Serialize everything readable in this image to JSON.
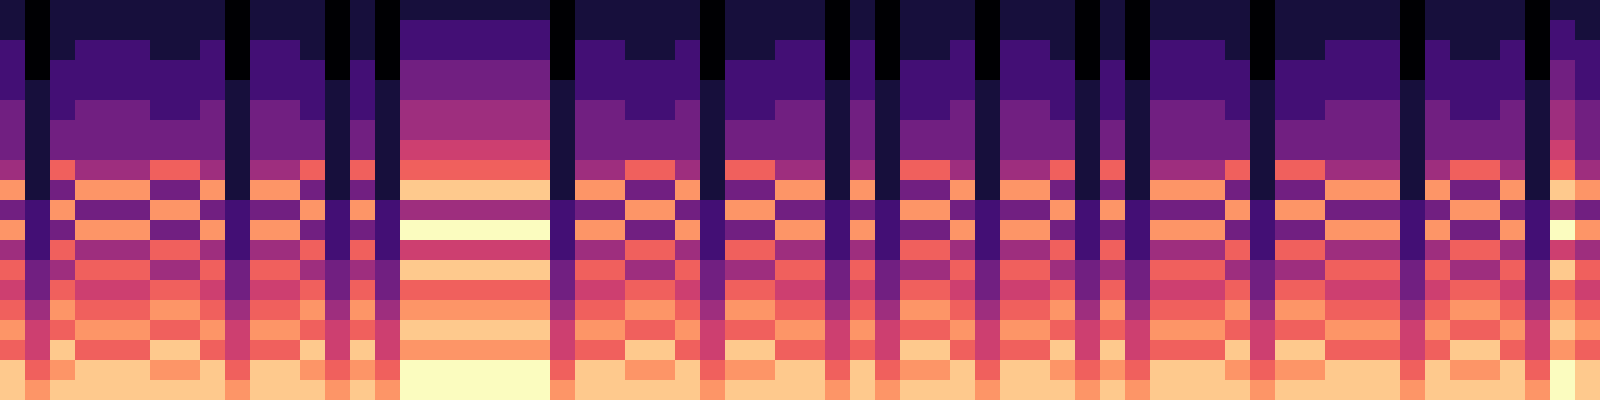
{
  "chart_data": {
    "type": "heatmap",
    "color": "magma",
    "tick_labels": false,
    "cells": [
      [
        1,
        0,
        1,
        1,
        1,
        1,
        1,
        1,
        1,
        0,
        1,
        1,
        1,
        0,
        1,
        0,
        1,
        1,
        1,
        1,
        1,
        1,
        0,
        1,
        1,
        1,
        1,
        1,
        0,
        1,
        1,
        1,
        1,
        0,
        1,
        0,
        1,
        1,
        1,
        0,
        1,
        1,
        1,
        0,
        1,
        0,
        1,
        1,
        1,
        1,
        0,
        1,
        1,
        1,
        1,
        1,
        0,
        1,
        1,
        1,
        1,
        0,
        1,
        1
      ],
      [
        1,
        0,
        1,
        1,
        1,
        1,
        1,
        1,
        1,
        0,
        1,
        1,
        1,
        0,
        1,
        0,
        2,
        2,
        2,
        2,
        2,
        2,
        0,
        1,
        1,
        1,
        1,
        1,
        0,
        1,
        1,
        1,
        1,
        0,
        1,
        0,
        1,
        1,
        1,
        0,
        1,
        1,
        1,
        0,
        1,
        0,
        1,
        1,
        1,
        1,
        0,
        1,
        1,
        1,
        1,
        1,
        0,
        1,
        1,
        1,
        1,
        0,
        2,
        1
      ],
      [
        2,
        0,
        1,
        2,
        2,
        2,
        1,
        1,
        2,
        0,
        2,
        2,
        1,
        0,
        1,
        0,
        2,
        2,
        2,
        2,
        2,
        2,
        0,
        2,
        2,
        1,
        1,
        2,
        0,
        1,
        1,
        2,
        2,
        0,
        2,
        0,
        1,
        1,
        2,
        0,
        2,
        2,
        1,
        0,
        1,
        0,
        2,
        2,
        2,
        1,
        0,
        1,
        1,
        2,
        2,
        2,
        0,
        2,
        1,
        1,
        2,
        0,
        2,
        2
      ],
      [
        2,
        0,
        2,
        2,
        2,
        2,
        2,
        2,
        2,
        0,
        2,
        2,
        2,
        0,
        2,
        0,
        3,
        3,
        3,
        3,
        3,
        3,
        0,
        2,
        2,
        2,
        2,
        2,
        0,
        2,
        2,
        2,
        2,
        0,
        2,
        0,
        2,
        2,
        2,
        0,
        2,
        2,
        2,
        0,
        2,
        0,
        2,
        2,
        2,
        2,
        0,
        2,
        2,
        2,
        2,
        2,
        0,
        2,
        2,
        2,
        2,
        0,
        3,
        2
      ],
      [
        2,
        1,
        2,
        2,
        2,
        2,
        2,
        2,
        2,
        1,
        2,
        2,
        2,
        1,
        2,
        1,
        3,
        3,
        3,
        3,
        3,
        3,
        1,
        2,
        2,
        2,
        2,
        2,
        1,
        2,
        2,
        2,
        2,
        1,
        2,
        1,
        2,
        2,
        2,
        1,
        2,
        2,
        2,
        1,
        2,
        1,
        2,
        2,
        2,
        2,
        1,
        2,
        2,
        2,
        2,
        2,
        1,
        2,
        2,
        2,
        2,
        1,
        3,
        2
      ],
      [
        3,
        1,
        2,
        3,
        3,
        3,
        2,
        2,
        3,
        1,
        3,
        3,
        2,
        1,
        2,
        1,
        4,
        4,
        4,
        4,
        4,
        4,
        1,
        3,
        3,
        2,
        2,
        3,
        1,
        2,
        2,
        3,
        3,
        1,
        3,
        1,
        2,
        2,
        3,
        1,
        3,
        3,
        2,
        1,
        2,
        1,
        3,
        3,
        3,
        2,
        1,
        2,
        2,
        3,
        3,
        3,
        1,
        3,
        2,
        2,
        3,
        1,
        4,
        3
      ],
      [
        3,
        1,
        3,
        3,
        3,
        3,
        3,
        3,
        3,
        1,
        3,
        3,
        3,
        1,
        3,
        1,
        4,
        4,
        4,
        4,
        4,
        4,
        1,
        3,
        3,
        3,
        3,
        3,
        1,
        3,
        3,
        3,
        3,
        1,
        3,
        1,
        3,
        3,
        3,
        1,
        3,
        3,
        3,
        1,
        3,
        1,
        3,
        3,
        3,
        3,
        1,
        3,
        3,
        3,
        3,
        3,
        1,
        3,
        3,
        3,
        3,
        1,
        4,
        3
      ],
      [
        3,
        1,
        3,
        3,
        3,
        3,
        3,
        3,
        3,
        1,
        3,
        3,
        3,
        1,
        3,
        1,
        5,
        5,
        5,
        5,
        5,
        5,
        1,
        3,
        3,
        3,
        3,
        3,
        1,
        3,
        3,
        3,
        3,
        1,
        3,
        1,
        3,
        3,
        3,
        1,
        3,
        3,
        3,
        1,
        3,
        1,
        3,
        3,
        3,
        3,
        1,
        3,
        3,
        3,
        3,
        3,
        1,
        3,
        3,
        3,
        3,
        1,
        5,
        3
      ],
      [
        4,
        1,
        6,
        4,
        4,
        4,
        6,
        6,
        4,
        1,
        4,
        4,
        6,
        1,
        6,
        1,
        6,
        6,
        6,
        6,
        6,
        6,
        1,
        4,
        4,
        6,
        6,
        4,
        1,
        6,
        6,
        4,
        4,
        1,
        4,
        1,
        6,
        6,
        4,
        1,
        4,
        4,
        6,
        1,
        6,
        1,
        4,
        4,
        4,
        6,
        1,
        6,
        6,
        4,
        4,
        4,
        1,
        4,
        6,
        6,
        4,
        1,
        6,
        4
      ],
      [
        7,
        1,
        3,
        7,
        7,
        7,
        3,
        3,
        7,
        1,
        7,
        7,
        3,
        1,
        3,
        1,
        8,
        8,
        8,
        8,
        8,
        8,
        1,
        7,
        7,
        3,
        3,
        7,
        1,
        3,
        3,
        7,
        7,
        1,
        7,
        1,
        3,
        3,
        7,
        1,
        7,
        7,
        3,
        1,
        3,
        1,
        7,
        7,
        7,
        3,
        1,
        3,
        3,
        7,
        7,
        7,
        1,
        7,
        3,
        3,
        7,
        1,
        8,
        7
      ],
      [
        3,
        2,
        7,
        3,
        3,
        3,
        7,
        7,
        3,
        2,
        3,
        3,
        7,
        2,
        7,
        2,
        4,
        4,
        4,
        4,
        4,
        4,
        2,
        3,
        3,
        7,
        7,
        3,
        2,
        7,
        7,
        3,
        3,
        2,
        3,
        2,
        7,
        7,
        3,
        2,
        3,
        3,
        7,
        2,
        7,
        2,
        3,
        3,
        3,
        7,
        2,
        7,
        7,
        3,
        3,
        3,
        2,
        3,
        7,
        7,
        3,
        2,
        4,
        3
      ],
      [
        7,
        2,
        3,
        7,
        7,
        7,
        3,
        3,
        7,
        2,
        7,
        7,
        3,
        2,
        3,
        2,
        9,
        9,
        9,
        9,
        9,
        9,
        2,
        7,
        7,
        3,
        3,
        7,
        2,
        3,
        3,
        7,
        7,
        2,
        7,
        2,
        3,
        3,
        7,
        2,
        7,
        7,
        3,
        2,
        3,
        2,
        7,
        7,
        7,
        3,
        2,
        3,
        3,
        7,
        7,
        7,
        2,
        7,
        3,
        3,
        7,
        2,
        9,
        7
      ],
      [
        4,
        2,
        6,
        4,
        4,
        4,
        6,
        6,
        4,
        2,
        4,
        4,
        6,
        2,
        6,
        2,
        5,
        5,
        5,
        5,
        5,
        5,
        2,
        4,
        4,
        6,
        6,
        4,
        2,
        6,
        6,
        4,
        4,
        2,
        4,
        2,
        6,
        6,
        4,
        2,
        4,
        4,
        6,
        2,
        6,
        2,
        4,
        4,
        4,
        6,
        2,
        6,
        6,
        4,
        4,
        4,
        2,
        4,
        6,
        6,
        4,
        2,
        5,
        4
      ],
      [
        6,
        3,
        4,
        6,
        6,
        6,
        4,
        4,
        6,
        3,
        6,
        6,
        4,
        3,
        4,
        3,
        8,
        8,
        8,
        8,
        8,
        8,
        3,
        6,
        6,
        4,
        4,
        6,
        3,
        4,
        4,
        6,
        6,
        3,
        6,
        3,
        4,
        4,
        6,
        3,
        6,
        6,
        4,
        3,
        4,
        3,
        6,
        6,
        6,
        4,
        3,
        4,
        4,
        6,
        6,
        6,
        3,
        6,
        4,
        4,
        6,
        3,
        8,
        6
      ],
      [
        5,
        3,
        6,
        5,
        5,
        5,
        6,
        6,
        5,
        3,
        5,
        5,
        6,
        3,
        6,
        3,
        6,
        6,
        6,
        6,
        6,
        6,
        3,
        5,
        5,
        6,
        6,
        5,
        3,
        6,
        6,
        5,
        5,
        3,
        5,
        3,
        6,
        6,
        5,
        3,
        5,
        5,
        6,
        3,
        6,
        3,
        5,
        5,
        5,
        6,
        3,
        6,
        6,
        5,
        5,
        5,
        3,
        5,
        6,
        6,
        5,
        3,
        6,
        5
      ],
      [
        6,
        4,
        7,
        6,
        6,
        6,
        7,
        7,
        6,
        4,
        6,
        6,
        7,
        4,
        7,
        4,
        7,
        7,
        7,
        7,
        7,
        7,
        4,
        6,
        6,
        7,
        7,
        6,
        4,
        7,
        7,
        6,
        6,
        4,
        6,
        4,
        7,
        7,
        6,
        4,
        6,
        6,
        7,
        4,
        7,
        4,
        6,
        6,
        6,
        7,
        4,
        7,
        7,
        6,
        6,
        6,
        4,
        6,
        7,
        7,
        6,
        4,
        7,
        6
      ],
      [
        7,
        5,
        6,
        7,
        7,
        7,
        6,
        6,
        7,
        5,
        7,
        7,
        6,
        5,
        6,
        5,
        8,
        8,
        8,
        8,
        8,
        8,
        5,
        7,
        7,
        6,
        6,
        7,
        5,
        6,
        6,
        7,
        7,
        5,
        7,
        5,
        6,
        6,
        7,
        5,
        7,
        7,
        6,
        5,
        6,
        5,
        7,
        7,
        7,
        6,
        5,
        6,
        6,
        7,
        7,
        7,
        5,
        7,
        6,
        6,
        7,
        5,
        8,
        7
      ],
      [
        6,
        5,
        8,
        6,
        6,
        6,
        8,
        8,
        6,
        5,
        6,
        6,
        8,
        5,
        8,
        5,
        7,
        7,
        7,
        7,
        7,
        7,
        5,
        6,
        6,
        8,
        8,
        6,
        5,
        8,
        8,
        6,
        6,
        5,
        6,
        5,
        8,
        8,
        6,
        5,
        6,
        6,
        8,
        5,
        8,
        5,
        6,
        6,
        6,
        8,
        5,
        8,
        8,
        6,
        6,
        6,
        5,
        6,
        8,
        8,
        6,
        5,
        7,
        6
      ],
      [
        8,
        6,
        7,
        8,
        8,
        8,
        7,
        7,
        8,
        6,
        8,
        8,
        7,
        6,
        7,
        6,
        9,
        9,
        9,
        9,
        9,
        9,
        6,
        8,
        8,
        7,
        7,
        8,
        6,
        7,
        7,
        8,
        8,
        6,
        8,
        6,
        7,
        7,
        8,
        6,
        8,
        8,
        7,
        6,
        7,
        6,
        8,
        8,
        8,
        7,
        6,
        7,
        7,
        8,
        8,
        8,
        6,
        8,
        7,
        7,
        8,
        6,
        9,
        8
      ],
      [
        8,
        7,
        8,
        8,
        8,
        8,
        8,
        8,
        8,
        7,
        8,
        8,
        8,
        7,
        8,
        7,
        9,
        9,
        9,
        9,
        9,
        9,
        7,
        8,
        8,
        8,
        8,
        8,
        7,
        8,
        8,
        8,
        8,
        7,
        8,
        7,
        8,
        8,
        8,
        7,
        8,
        8,
        8,
        7,
        8,
        7,
        8,
        8,
        8,
        8,
        7,
        8,
        8,
        8,
        8,
        8,
        7,
        8,
        8,
        8,
        8,
        7,
        9,
        8
      ]
    ]
  }
}
